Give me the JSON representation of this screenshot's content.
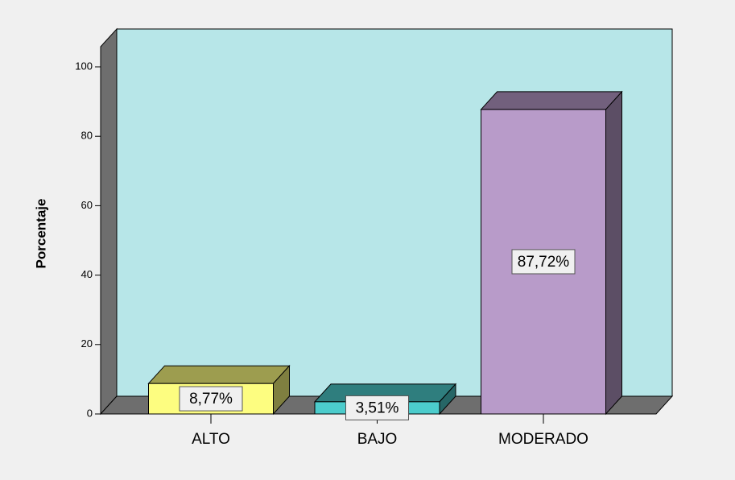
{
  "chart_data": {
    "type": "bar3d",
    "y_label": "Porcentaje",
    "categories": [
      "ALTO",
      "BAJO",
      "MODERADO"
    ],
    "values": [
      8.77,
      3.51,
      87.72
    ],
    "value_labels": [
      "8,77%",
      "3,51%",
      "87,72%"
    ],
    "colors": [
      "#fdfd80",
      "#4ccccc",
      "#b89bc9"
    ],
    "ylim": [
      0,
      105.8
    ],
    "yticks": [
      0,
      20,
      40,
      60,
      80,
      100
    ]
  }
}
